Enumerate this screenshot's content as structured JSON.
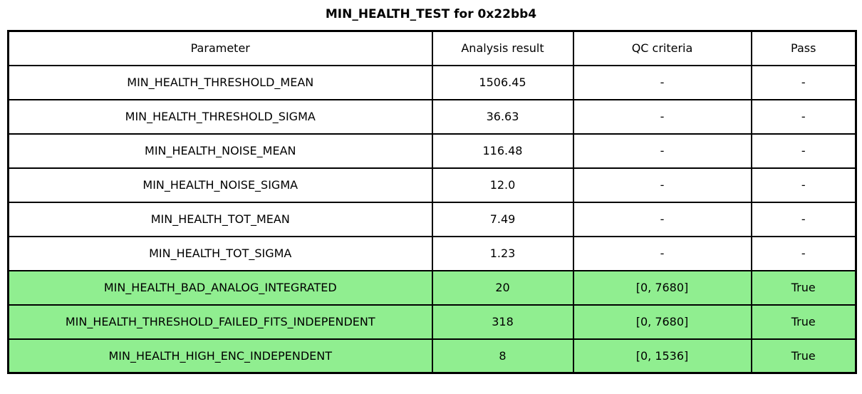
{
  "title": "MIN_HEALTH_TEST for 0x22bb4",
  "chart_data": {
    "type": "table",
    "title": "MIN_HEALTH_TEST for 0x22bb4",
    "columns": [
      "Parameter",
      "Analysis result",
      "QC criteria",
      "Pass"
    ],
    "rows": [
      {
        "cells": [
          "MIN_HEALTH_THRESHOLD_MEAN",
          "1506.45",
          "-",
          "-"
        ],
        "highlight": false
      },
      {
        "cells": [
          "MIN_HEALTH_THRESHOLD_SIGMA",
          "36.63",
          "-",
          "-"
        ],
        "highlight": false
      },
      {
        "cells": [
          "MIN_HEALTH_NOISE_MEAN",
          "116.48",
          "-",
          "-"
        ],
        "highlight": false
      },
      {
        "cells": [
          "MIN_HEALTH_NOISE_SIGMA",
          "12.0",
          "-",
          "-"
        ],
        "highlight": false
      },
      {
        "cells": [
          "MIN_HEALTH_TOT_MEAN",
          "7.49",
          "-",
          "-"
        ],
        "highlight": false
      },
      {
        "cells": [
          "MIN_HEALTH_TOT_SIGMA",
          "1.23",
          "-",
          "-"
        ],
        "highlight": false
      },
      {
        "cells": [
          "MIN_HEALTH_BAD_ANALOG_INTEGRATED",
          "20",
          "[0, 7680]",
          "True"
        ],
        "highlight": true
      },
      {
        "cells": [
          "MIN_HEALTH_THRESHOLD_FAILED_FITS_INDEPENDENT",
          "318",
          "[0, 7680]",
          "True"
        ],
        "highlight": true
      },
      {
        "cells": [
          "MIN_HEALTH_HIGH_ENC_INDEPENDENT",
          "8",
          "[0, 1536]",
          "True"
        ],
        "highlight": true
      }
    ],
    "layout": {
      "grid": "full-borders",
      "highlight_meaning": "row passed QC check"
    }
  },
  "colors": {
    "pass_row_green": "#90ee90",
    "border": "#000000",
    "text": "#000000",
    "background": "#ffffff"
  }
}
